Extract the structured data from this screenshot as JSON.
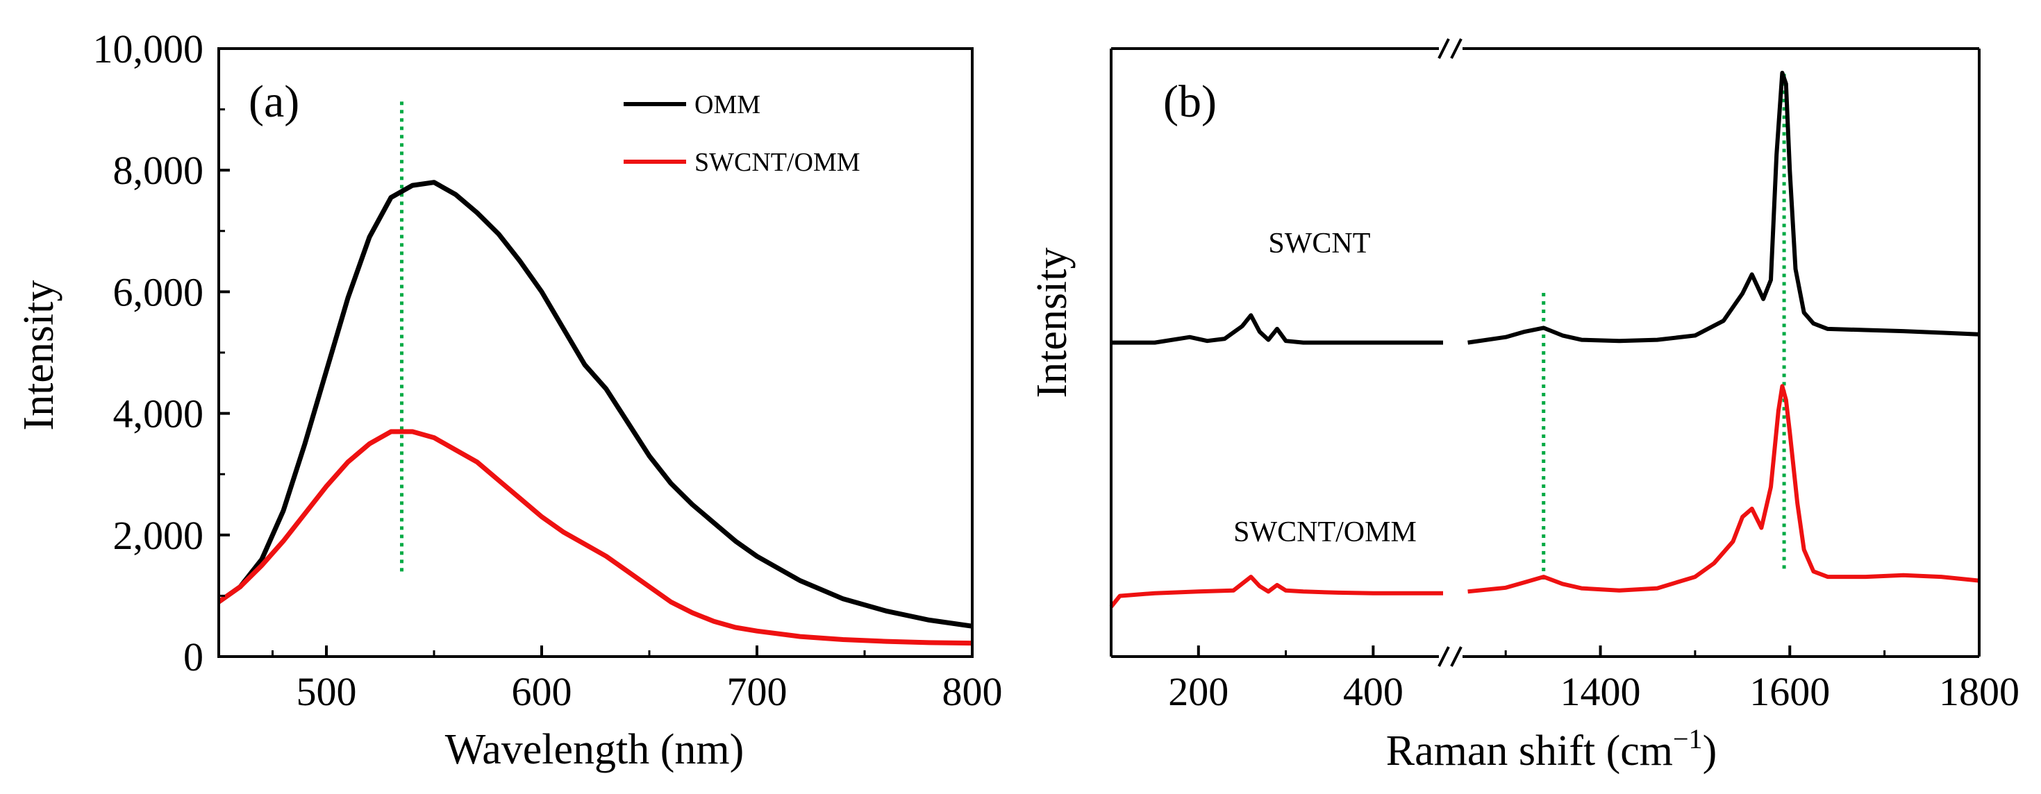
{
  "colors": {
    "omm": "#000000",
    "swcnt_omm": "#ee1111",
    "guide": "#00aa44",
    "axis": "#000000"
  },
  "chart_data": [
    {
      "type": "line",
      "panel_label": "(a)",
      "xlabel": "Wavelength (nm)",
      "ylabel": "Intensity",
      "xlim": [
        450,
        800
      ],
      "ylim": [
        0,
        10000
      ],
      "x_ticks": [
        500,
        600,
        700,
        800
      ],
      "x_tick_labels": [
        "500",
        "600",
        "700",
        "800"
      ],
      "y_ticks": [
        0,
        2000,
        4000,
        6000,
        8000,
        10000
      ],
      "y_tick_labels": [
        "0",
        "2,000",
        "4,000",
        "6,000",
        "8,000",
        "10,000"
      ],
      "legend_position": "top-right",
      "legend": [
        "OMM",
        "SWCNT/OMM"
      ],
      "guide_line": {
        "x": 535,
        "y_range": [
          1400,
          9200
        ]
      },
      "series": [
        {
          "name": "OMM",
          "color_key": "omm",
          "x": [
            450,
            460,
            470,
            480,
            490,
            500,
            510,
            520,
            530,
            540,
            550,
            560,
            570,
            580,
            590,
            600,
            610,
            620,
            630,
            640,
            650,
            660,
            670,
            680,
            690,
            700,
            720,
            740,
            760,
            780,
            800
          ],
          "y": [
            900,
            1150,
            1600,
            2400,
            3500,
            4700,
            5900,
            6900,
            7550,
            7750,
            7800,
            7600,
            7300,
            6950,
            6500,
            6000,
            5400,
            4800,
            4400,
            3850,
            3300,
            2850,
            2500,
            2200,
            1900,
            1650,
            1250,
            950,
            750,
            600,
            500
          ]
        },
        {
          "name": "SWCNT/OMM",
          "color_key": "swcnt_omm",
          "x": [
            450,
            460,
            470,
            480,
            490,
            500,
            510,
            520,
            530,
            540,
            550,
            560,
            570,
            580,
            590,
            600,
            610,
            620,
            630,
            640,
            650,
            660,
            670,
            680,
            690,
            700,
            720,
            740,
            760,
            780,
            800
          ],
          "y": [
            900,
            1150,
            1500,
            1900,
            2350,
            2800,
            3200,
            3500,
            3700,
            3700,
            3600,
            3400,
            3200,
            2900,
            2600,
            2300,
            2050,
            1850,
            1650,
            1400,
            1150,
            900,
            720,
            580,
            480,
            420,
            330,
            280,
            250,
            230,
            220
          ]
        }
      ]
    },
    {
      "type": "line",
      "panel_label": "(b)",
      "xlabel_main": "Raman shift (cm",
      "xlabel_sup": "−1",
      "xlabel_close": ")",
      "ylabel": "Intensity",
      "axis_break": true,
      "segments": [
        {
          "xlim": [
            100,
            480
          ]
        },
        {
          "xlim": [
            1250,
            1800
          ]
        }
      ],
      "x_ticks": [
        200,
        400,
        1400,
        1600,
        1800
      ],
      "x_tick_labels": [
        "200",
        "400",
        "1400",
        "1600",
        "1800"
      ],
      "ylim": [
        0,
        100
      ],
      "y_ticks": [],
      "guide_lines": [
        {
          "x": 1340,
          "y_range": [
            7,
            60
          ]
        },
        {
          "x": 1594,
          "y_range": [
            9,
            100
          ]
        }
      ],
      "annotations": [
        {
          "text": "SWCNT",
          "x": 280,
          "y": 67
        },
        {
          "text": "SWCNT/OMM",
          "x": 240,
          "y": 14
        }
      ],
      "series": [
        {
          "name": "SWCNT",
          "color_key": "omm",
          "segments": [
            {
              "x": [
                100,
                150,
                190,
                210,
                230,
                250,
                260,
                270,
                280,
                290,
                300,
                320,
                350,
                400,
                450,
                480
              ],
              "y": [
                50.5,
                50.5,
                51.5,
                50.8,
                51.2,
                53.5,
                55.5,
                52.5,
                51,
                53,
                50.8,
                50.5,
                50.5,
                50.5,
                50.5,
                50.5
              ]
            },
            {
              "x": [
                1260,
                1300,
                1320,
                1340,
                1360,
                1380,
                1420,
                1460,
                1500,
                1530,
                1550,
                1560,
                1572,
                1580,
                1586,
                1592,
                1596,
                1600,
                1606,
                1615,
                1625,
                1640,
                1680,
                1720,
                1760,
                1800
              ],
              "y": [
                50.5,
                51.5,
                52.5,
                53.2,
                51.8,
                51,
                50.8,
                51,
                51.8,
                54.5,
                59.5,
                63,
                58.5,
                62,
                85,
                100,
                98,
                82,
                64,
                56,
                54,
                53,
                52.8,
                52.6,
                52.3,
                52
              ]
            }
          ]
        },
        {
          "name": "SWCNT/OMM",
          "color_key": "swcnt_omm",
          "segments": [
            {
              "x": [
                100,
                110,
                150,
                200,
                240,
                260,
                270,
                280,
                290,
                300,
                320,
                360,
                400,
                450,
                480
              ],
              "y": [
                2,
                4,
                4.5,
                4.8,
                5,
                7.5,
                5.8,
                4.8,
                6,
                5,
                4.8,
                4.6,
                4.5,
                4.5,
                4.5
              ]
            },
            {
              "x": [
                1260,
                1300,
                1320,
                1340,
                1360,
                1380,
                1420,
                1460,
                1500,
                1520,
                1540,
                1550,
                1560,
                1570,
                1580,
                1588,
                1592,
                1596,
                1600,
                1608,
                1615,
                1625,
                1640,
                1680,
                1720,
                1760,
                1800
              ],
              "y": [
                4.8,
                5.5,
                6.5,
                7.5,
                6.2,
                5.4,
                5,
                5.4,
                7.5,
                10,
                14,
                18.5,
                20,
                16.5,
                24,
                38,
                42.5,
                40,
                34,
                21,
                12.5,
                8.5,
                7.5,
                7.5,
                7.8,
                7.5,
                6.8
              ]
            }
          ]
        }
      ]
    }
  ]
}
